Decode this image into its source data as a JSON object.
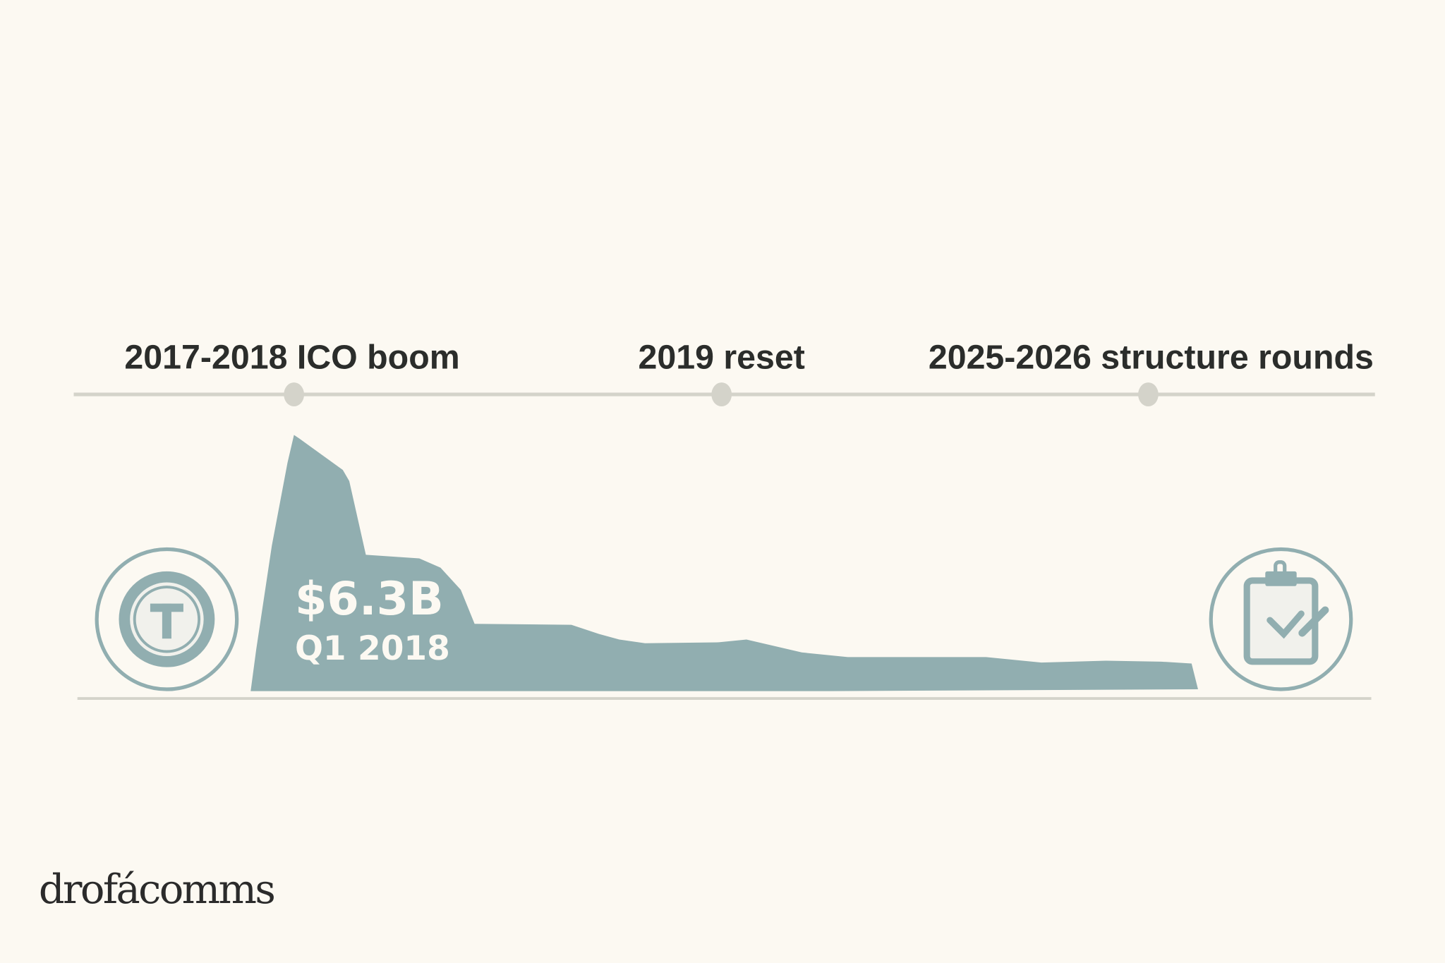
{
  "timeline": {
    "milestones": [
      {
        "label": "2017-2018 ICO boom"
      },
      {
        "label": "2019 reset"
      },
      {
        "label": "2025-2026 structure rounds"
      }
    ]
  },
  "callout": {
    "value": "$6.3B",
    "period": "Q1 2018"
  },
  "icons": {
    "left": "token-coin-icon",
    "right": "clipboard-check-icon"
  },
  "logo": {
    "text": "drofácomms"
  },
  "colors": {
    "background": "#fcf9f2",
    "area": "#91aeb0",
    "timeline": "#d4d3ca",
    "text": "#2b2d2b"
  }
}
